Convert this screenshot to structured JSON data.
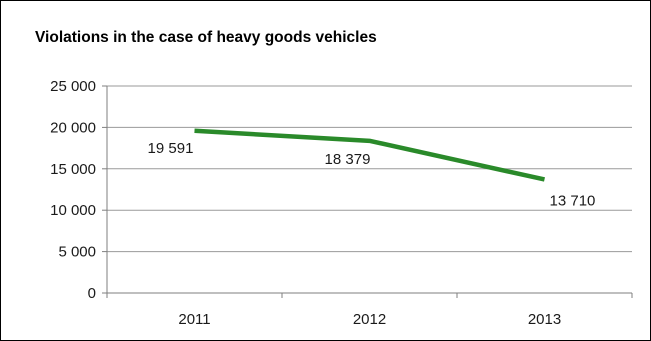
{
  "chart_data": {
    "type": "line",
    "title": "Violations in the case of heavy goods vehicles",
    "xlabel": "",
    "ylabel": "",
    "categories": [
      "2011",
      "2012",
      "2013"
    ],
    "series": [
      {
        "values": [
          19591,
          18379,
          13710
        ],
        "color": "#2a8a2a"
      }
    ],
    "data_labels": [
      "19 591",
      "18 379",
      "13 710"
    ],
    "yticks": [
      0,
      5000,
      10000,
      15000,
      20000,
      25000
    ],
    "ytick_labels": [
      "0",
      "5 000",
      "10 000",
      "15 000",
      "20 000",
      "25 000"
    ],
    "ylim": [
      0,
      25000
    ],
    "grid": "horizontal",
    "legend": "none"
  },
  "colors": {
    "line": "#2a8a2a",
    "grid": "#9a9a9a",
    "axis": "#7f7f7f",
    "text": "#1a1a1a"
  }
}
